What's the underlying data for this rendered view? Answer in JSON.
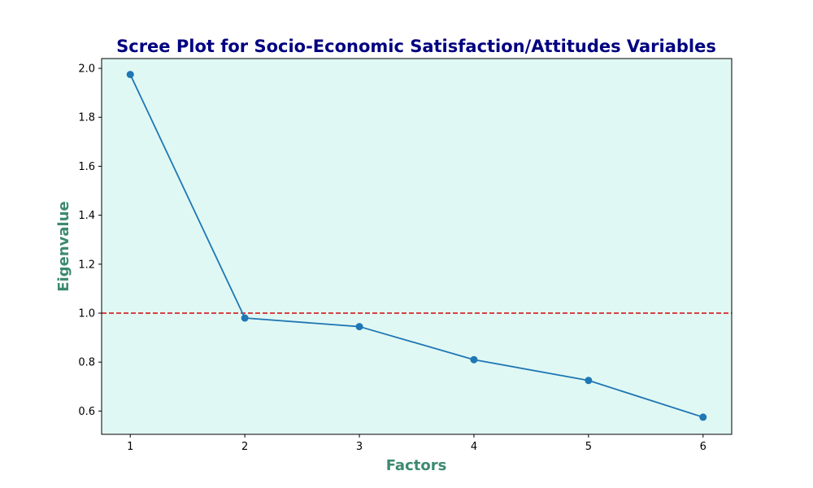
{
  "chart_data": {
    "type": "line",
    "title": "Scree Plot for Socio-Economic Satisfaction/Attitudes Variables",
    "xlabel": "Factors",
    "ylabel": "Eigenvalue",
    "x": [
      1,
      2,
      3,
      4,
      5,
      6
    ],
    "series": [
      {
        "values": [
          1.975,
          0.98,
          0.945,
          0.81,
          0.725,
          0.575
        ]
      }
    ],
    "xlim": [
      0.75,
      6.25
    ],
    "ylim": [
      0.505,
      2.04
    ],
    "xticks": [
      1,
      2,
      3,
      4,
      5,
      6
    ],
    "yticks": [
      0.6,
      0.8,
      1.0,
      1.2,
      1.4,
      1.6,
      1.8,
      2.0
    ],
    "xtick_labels": [
      "1",
      "2",
      "3",
      "4",
      "5",
      "6"
    ],
    "ytick_labels": [
      "0.6",
      "0.8",
      "1.0",
      "1.2",
      "1.4",
      "1.6",
      "1.8",
      "2.0"
    ],
    "reference_line": {
      "y": 1.0,
      "style": "dashed",
      "color": "#d62728"
    },
    "grid": false,
    "legend": "none",
    "colors": {
      "line": "#1f77b4",
      "plot_background": "#e0f8f4",
      "title": "#000080",
      "axis_labels": "#3c8a6e"
    }
  }
}
